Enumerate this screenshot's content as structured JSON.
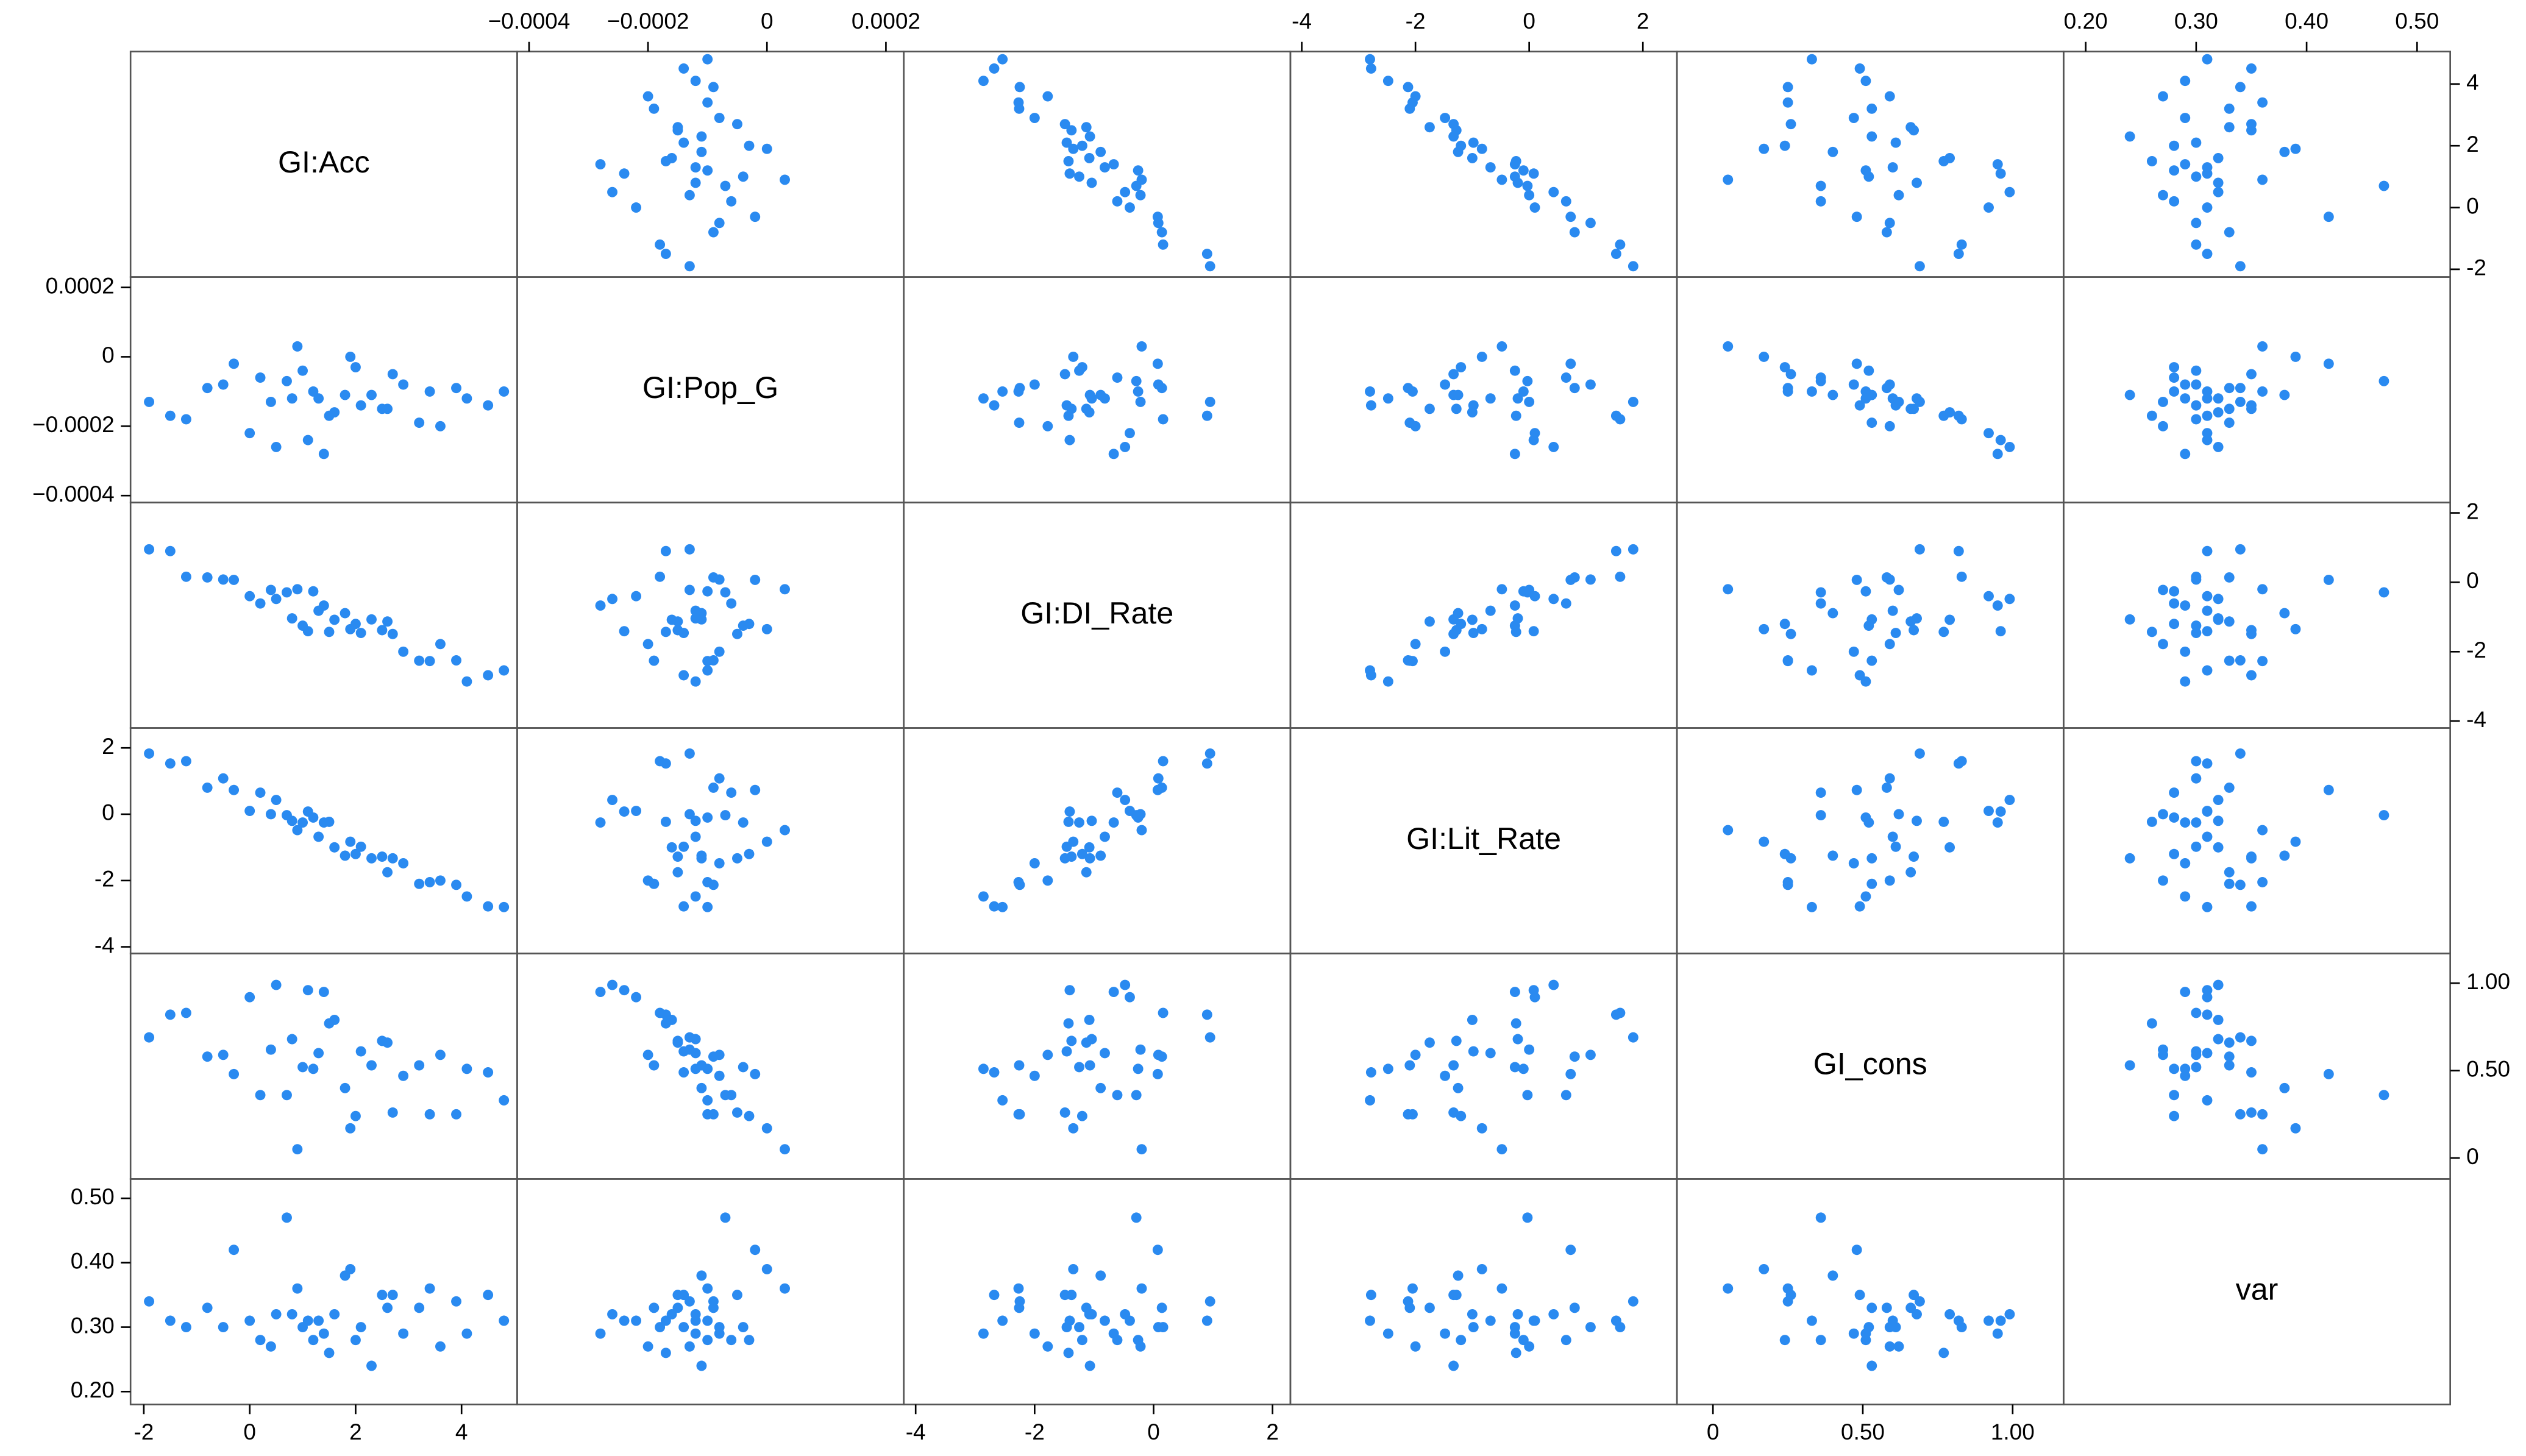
{
  "chart_data": {
    "type": "scatter-matrix",
    "color": "#2a8af0",
    "variables": [
      {
        "name": "GI:Acc",
        "lim": [
          -2.25,
          5.05
        ],
        "ticks": [
          -2,
          0,
          2,
          4
        ],
        "values": [
          1.3,
          0.2,
          2.5,
          -0.8,
          3.6,
          1.0,
          1.8,
          0.5,
          2.9,
          -1.9,
          4.8,
          1.5,
          0.9,
          2.1,
          -0.3,
          3.2,
          1.2,
          0.0,
          2.7,
          4.1,
          1.6,
          0.7,
          -1.2,
          2.3,
          3.9,
          1.1,
          0.4,
          1.9,
          2.6,
          -0.5,
          3.4,
          1.4,
          0.8,
          2.0,
          4.5,
          -1.5
        ]
      },
      {
        "name": "GI:Pop_G",
        "lim": [
          -0.00042,
          0.00023
        ],
        "ticks": [
          {
            "value": -0.0004,
            "label": "−0.0004"
          },
          {
            "value": -0.0002,
            "label": "−0.0002"
          },
          0,
          0.0002
        ],
        "values": [
          -0.00012,
          -6e-05,
          -0.00015,
          -9e-05,
          -0.0002,
          -4e-05,
          -0.00011,
          -0.00026,
          -8e-05,
          -0.00013,
          -0.0001,
          -0.00017,
          3e-05,
          -0.00014,
          -2e-05,
          -0.00019,
          -0.0001,
          -0.00022,
          -5e-05,
          -0.00012,
          -0.00016,
          -7e-05,
          -0.00018,
          -0.00011,
          -9e-05,
          -0.00024,
          -0.00013,
          0.0,
          -0.00015,
          -8e-05,
          -0.0001,
          -0.00028,
          -0.00012,
          -3e-05,
          -0.00014,
          -0.00017
        ]
      },
      {
        "name": "GI:DI_Rate",
        "lim": [
          -4.2,
          2.3
        ],
        "ticks": [
          -4,
          -2,
          0,
          2
        ],
        "values": [
          -0.82,
          -0.61,
          -1.38,
          0.14,
          -1.78,
          -1.25,
          -0.89,
          -0.48,
          -2.0,
          0.95,
          -2.54,
          -1.43,
          -0.2,
          -1.46,
          0.07,
          -2.26,
          -0.26,
          -0.4,
          -1.49,
          -2.86,
          -1.08,
          -0.29,
          0.16,
          -1.07,
          -2.25,
          -1.41,
          -0.22,
          -1.35,
          -1.13,
          0.08,
          -2.27,
          -0.67,
          -1.04,
          -1.2,
          -2.68,
          0.9
        ]
      },
      {
        "name": "GI:Lit_Rate",
        "lim": [
          -4.2,
          2.6
        ],
        "ticks": [
          -4,
          -2,
          0,
          2
        ],
        "values": [
          -0.68,
          0.65,
          -1.28,
          0.8,
          -2.0,
          -0.25,
          -1.25,
          0.43,
          -1.48,
          1.83,
          -2.8,
          -0.23,
          -0.48,
          -0.98,
          0.73,
          -2.1,
          -0.1,
          0.1,
          -1.33,
          -2.48,
          -1.0,
          -0.03,
          1.6,
          -1.33,
          -2.13,
          0.08,
          0.0,
          -0.83,
          -1.75,
          1.08,
          -2.05,
          -0.25,
          -0.2,
          -1.2,
          -2.78,
          1.53
        ]
      },
      {
        "name": "GI_cons",
        "lim": [
          -0.12,
          1.17
        ],
        "ticks": [
          0,
          {
            "value": 0.5,
            "label": "0.50"
          },
          {
            "value": 1,
            "label": "1.00"
          }
        ],
        "values": [
          0.6,
          0.36,
          0.67,
          0.58,
          0.59,
          0.52,
          0.4,
          0.99,
          0.47,
          0.69,
          0.33,
          0.77,
          0.05,
          0.61,
          0.48,
          0.53,
          0.51,
          0.92,
          0.26,
          0.51,
          0.79,
          0.36,
          0.83,
          0.53,
          0.25,
          0.96,
          0.62,
          0.17,
          0.66,
          0.59,
          0.25,
          0.95,
          0.68,
          0.24,
          0.49,
          0.82
        ]
      },
      {
        "name": "var",
        "lim": [
          0.18,
          0.53
        ],
        "ticks": [
          {
            "value": 0.2,
            "label": "0.20"
          },
          {
            "value": 0.3,
            "label": "0.30"
          },
          {
            "value": 0.4,
            "label": "0.40"
          },
          {
            "value": 0.5,
            "label": "0.50"
          }
        ],
        "values": [
          0.31,
          0.28,
          0.35,
          0.33,
          0.27,
          0.3,
          0.38,
          0.32,
          0.29,
          0.34,
          0.31,
          0.26,
          0.36,
          0.3,
          0.42,
          0.33,
          0.28,
          0.31,
          0.35,
          0.29,
          0.32,
          0.47,
          0.3,
          0.24,
          0.34,
          0.31,
          0.27,
          0.39,
          0.33,
          0.3,
          0.36,
          0.29,
          0.32,
          0.28,
          0.35,
          0.31
        ]
      }
    ]
  }
}
